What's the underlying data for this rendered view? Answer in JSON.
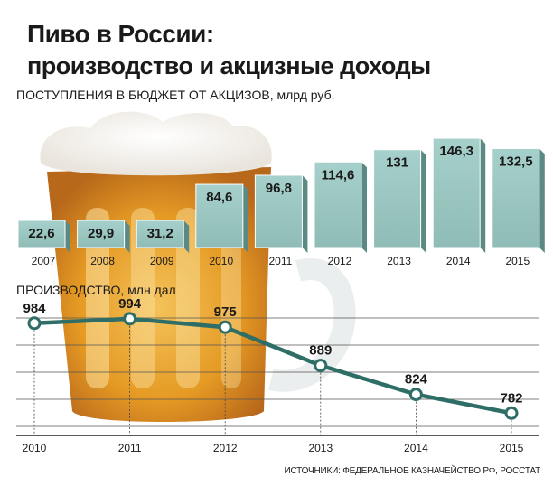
{
  "title_line1": "Пиво в России:",
  "title_line2": "производство и акцизные доходы",
  "source": "ИСТОЧНИКИ: ФЕДЕРАЛЬНОЕ КАЗНАЧЕЙСТВО РФ, РОССТАТ",
  "colors": {
    "bar": "#9ec9c4",
    "bar_dark": "#5b8a85",
    "line": "#2f6e67",
    "text": "#1a1a1a"
  },
  "chart_data": [
    {
      "type": "bar",
      "title": "ПОСТУПЛЕНИЯ В БЮДЖЕТ ОТ АКЦИЗОВ, млрд руб.",
      "categories": [
        "2007",
        "2008",
        "2009",
        "2010",
        "2011",
        "2012",
        "2013",
        "2014",
        "2015"
      ],
      "values": [
        22.6,
        29.9,
        31.2,
        84.6,
        96.8,
        114.6,
        131,
        146.3,
        132.5
      ],
      "labels": [
        "22,6",
        "29,9",
        "31,2",
        "84,6",
        "96,8",
        "114,6",
        "131",
        "146,3",
        "132,5"
      ],
      "ylim": [
        0,
        150
      ],
      "grid": false
    },
    {
      "type": "line",
      "title": "ПРОИЗВОДСТВО, млн дал",
      "x": [
        "2010",
        "2011",
        "2012",
        "2013",
        "2014",
        "2015"
      ],
      "values": [
        984,
        994,
        975,
        889,
        824,
        782
      ],
      "labels": [
        "984",
        "994",
        "975",
        "889",
        "824",
        "782"
      ],
      "ylim": [
        740,
        1010
      ],
      "grid": true
    }
  ]
}
